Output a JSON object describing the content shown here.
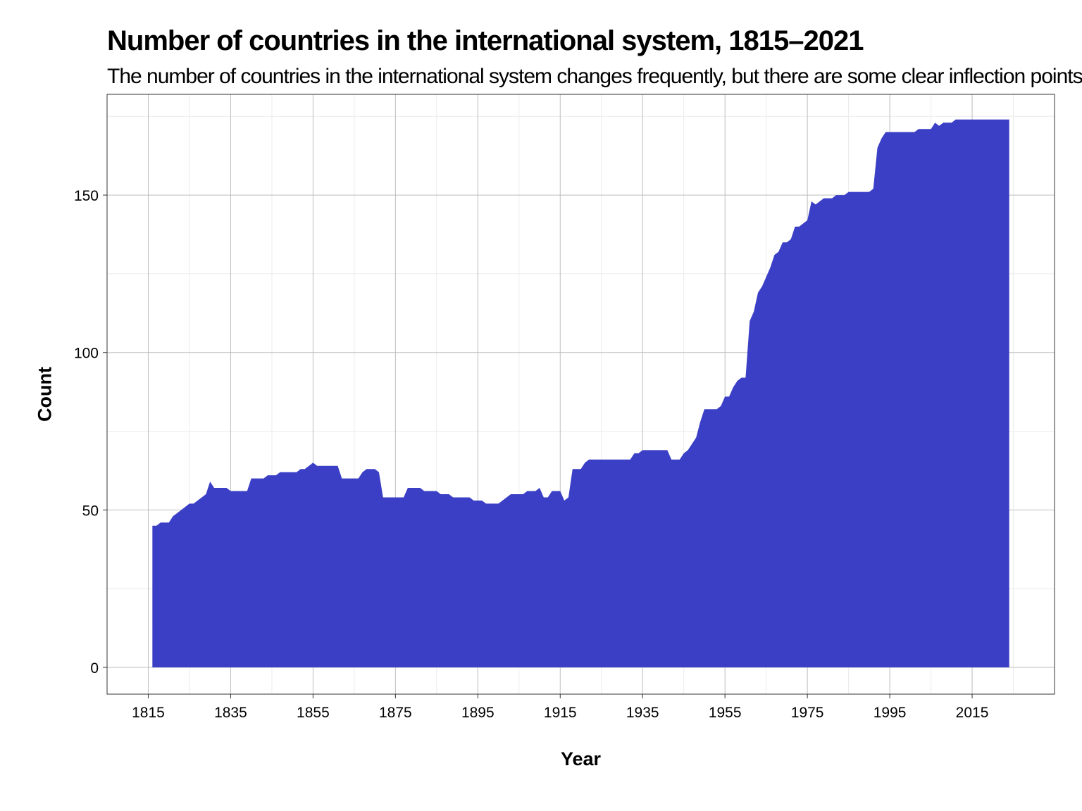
{
  "chart_data": {
    "type": "area",
    "title": "Number of countries in the international system, 1815–2021",
    "subtitle": "The number of countries in the international system changes frequently, but there are some clear inflection points",
    "xlabel": "Year",
    "ylabel": "Count",
    "xlim": [
      1805,
      2035
    ],
    "ylim": [
      -8.5,
      182
    ],
    "x_ticks": [
      1815,
      1835,
      1855,
      1875,
      1895,
      1915,
      1935,
      1955,
      1975,
      1995,
      2015
    ],
    "y_ticks": [
      0,
      50,
      100,
      150
    ],
    "grid": true,
    "legend": "none",
    "fill_color": "#3b3fc6",
    "points": [
      [
        1816,
        45
      ],
      [
        1817,
        45
      ],
      [
        1818,
        46
      ],
      [
        1820,
        46
      ],
      [
        1821,
        48
      ],
      [
        1823,
        50
      ],
      [
        1825,
        52
      ],
      [
        1826,
        52
      ],
      [
        1829,
        55
      ],
      [
        1830,
        59
      ],
      [
        1831,
        57
      ],
      [
        1834,
        57
      ],
      [
        1835,
        56
      ],
      [
        1839,
        56
      ],
      [
        1840,
        60
      ],
      [
        1843,
        60
      ],
      [
        1844,
        61
      ],
      [
        1846,
        61
      ],
      [
        1847,
        62
      ],
      [
        1851,
        62
      ],
      [
        1852,
        63
      ],
      [
        1853,
        63
      ],
      [
        1855,
        65
      ],
      [
        1856,
        64
      ],
      [
        1861,
        64
      ],
      [
        1862,
        60
      ],
      [
        1866,
        60
      ],
      [
        1867,
        62
      ],
      [
        1868,
        63
      ],
      [
        1870,
        63
      ],
      [
        1871,
        62
      ],
      [
        1872,
        54
      ],
      [
        1877,
        54
      ],
      [
        1878,
        57
      ],
      [
        1881,
        57
      ],
      [
        1882,
        56
      ],
      [
        1885,
        56
      ],
      [
        1886,
        55
      ],
      [
        1888,
        55
      ],
      [
        1889,
        54
      ],
      [
        1893,
        54
      ],
      [
        1894,
        53
      ],
      [
        1896,
        53
      ],
      [
        1897,
        52
      ],
      [
        1900,
        52
      ],
      [
        1903,
        55
      ],
      [
        1906,
        55
      ],
      [
        1907,
        56
      ],
      [
        1909,
        56
      ],
      [
        1910,
        57
      ],
      [
        1911,
        54
      ],
      [
        1912,
        54
      ],
      [
        1913,
        56
      ],
      [
        1915,
        56
      ],
      [
        1916,
        53
      ],
      [
        1917,
        54
      ],
      [
        1918,
        63
      ],
      [
        1920,
        63
      ],
      [
        1921,
        65
      ],
      [
        1922,
        66
      ],
      [
        1932,
        66
      ],
      [
        1933,
        68
      ],
      [
        1934,
        68
      ],
      [
        1935,
        69
      ],
      [
        1941,
        69
      ],
      [
        1942,
        66
      ],
      [
        1944,
        66
      ],
      [
        1945,
        68
      ],
      [
        1946,
        69
      ],
      [
        1948,
        73
      ],
      [
        1949,
        78
      ],
      [
        1950,
        82
      ],
      [
        1953,
        82
      ],
      [
        1954,
        83
      ],
      [
        1955,
        86
      ],
      [
        1956,
        86
      ],
      [
        1957,
        89
      ],
      [
        1958,
        91
      ],
      [
        1959,
        92
      ],
      [
        1960,
        92
      ],
      [
        1961,
        110
      ],
      [
        1962,
        113
      ],
      [
        1963,
        119
      ],
      [
        1964,
        121
      ],
      [
        1965,
        124
      ],
      [
        1966,
        127
      ],
      [
        1967,
        131
      ],
      [
        1968,
        132
      ],
      [
        1969,
        135
      ],
      [
        1970,
        135
      ],
      [
        1971,
        136
      ],
      [
        1972,
        140
      ],
      [
        1973,
        140
      ],
      [
        1975,
        142
      ],
      [
        1976,
        148
      ],
      [
        1977,
        147
      ],
      [
        1978,
        148
      ],
      [
        1979,
        149
      ],
      [
        1981,
        149
      ],
      [
        1982,
        150
      ],
      [
        1984,
        150
      ],
      [
        1985,
        151
      ],
      [
        1990,
        151
      ],
      [
        1991,
        152
      ],
      [
        1992,
        165
      ],
      [
        1993,
        168
      ],
      [
        1994,
        170
      ],
      [
        2001,
        170
      ],
      [
        2002,
        171
      ],
      [
        2005,
        171
      ],
      [
        2006,
        173
      ],
      [
        2007,
        172
      ],
      [
        2008,
        173
      ],
      [
        2010,
        173
      ],
      [
        2011,
        174
      ],
      [
        2024,
        174
      ]
    ]
  }
}
